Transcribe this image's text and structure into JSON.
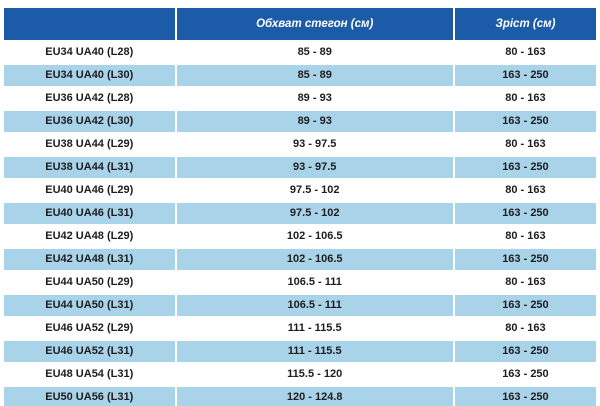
{
  "chart_data": {
    "type": "table",
    "title": "",
    "columns": [
      "",
      "Обхват стегон (см)",
      "Зріст (см)"
    ],
    "rows": [
      [
        "EU34 UA40 (L28)",
        "85 - 89",
        "80 - 163"
      ],
      [
        "EU34 UA40 (L30)",
        "85 - 89",
        "163 - 250"
      ],
      [
        "EU36 UA42 (L28)",
        "89 - 93",
        "80 - 163"
      ],
      [
        "EU36 UA42 (L30)",
        "89 - 93",
        "163 - 250"
      ],
      [
        "EU38 UA44 (L29)",
        "93 - 97.5",
        "80 - 163"
      ],
      [
        "EU38 UA44 (L31)",
        "93 - 97.5",
        "163 - 250"
      ],
      [
        "EU40 UA46 (L29)",
        "97.5 - 102",
        "80 - 163"
      ],
      [
        "EU40 UA46 (L31)",
        "97.5 - 102",
        "163 - 250"
      ],
      [
        "EU42 UA48 (L29)",
        "102 - 106.5",
        "80 - 163"
      ],
      [
        "EU42 UA48 (L31)",
        "102 - 106.5",
        "163 - 250"
      ],
      [
        "EU44 UA50 (L29)",
        "106.5 - 111",
        "80 - 163"
      ],
      [
        "EU44 UA50 (L31)",
        "106.5 - 111",
        "163 - 250"
      ],
      [
        "EU46 UA52 (L29)",
        "111 - 115.5",
        "80 - 163"
      ],
      [
        "EU46 UA52 (L31)",
        "111 - 115.5",
        "163 - 250"
      ],
      [
        "EU48 UA54 (L31)",
        "115.5 - 120",
        "163 - 250"
      ],
      [
        "EU50 UA56 (L31)",
        "120 - 124.8",
        "163 - 250"
      ]
    ]
  },
  "colors": {
    "header_bg": "#1c5ba7",
    "header_text": "#ffffff",
    "row_bg": "#ffffff",
    "row_alt_bg": "#a9d3e9",
    "cell_text": "#1d1d1f",
    "page_bg": "#ffffff"
  }
}
